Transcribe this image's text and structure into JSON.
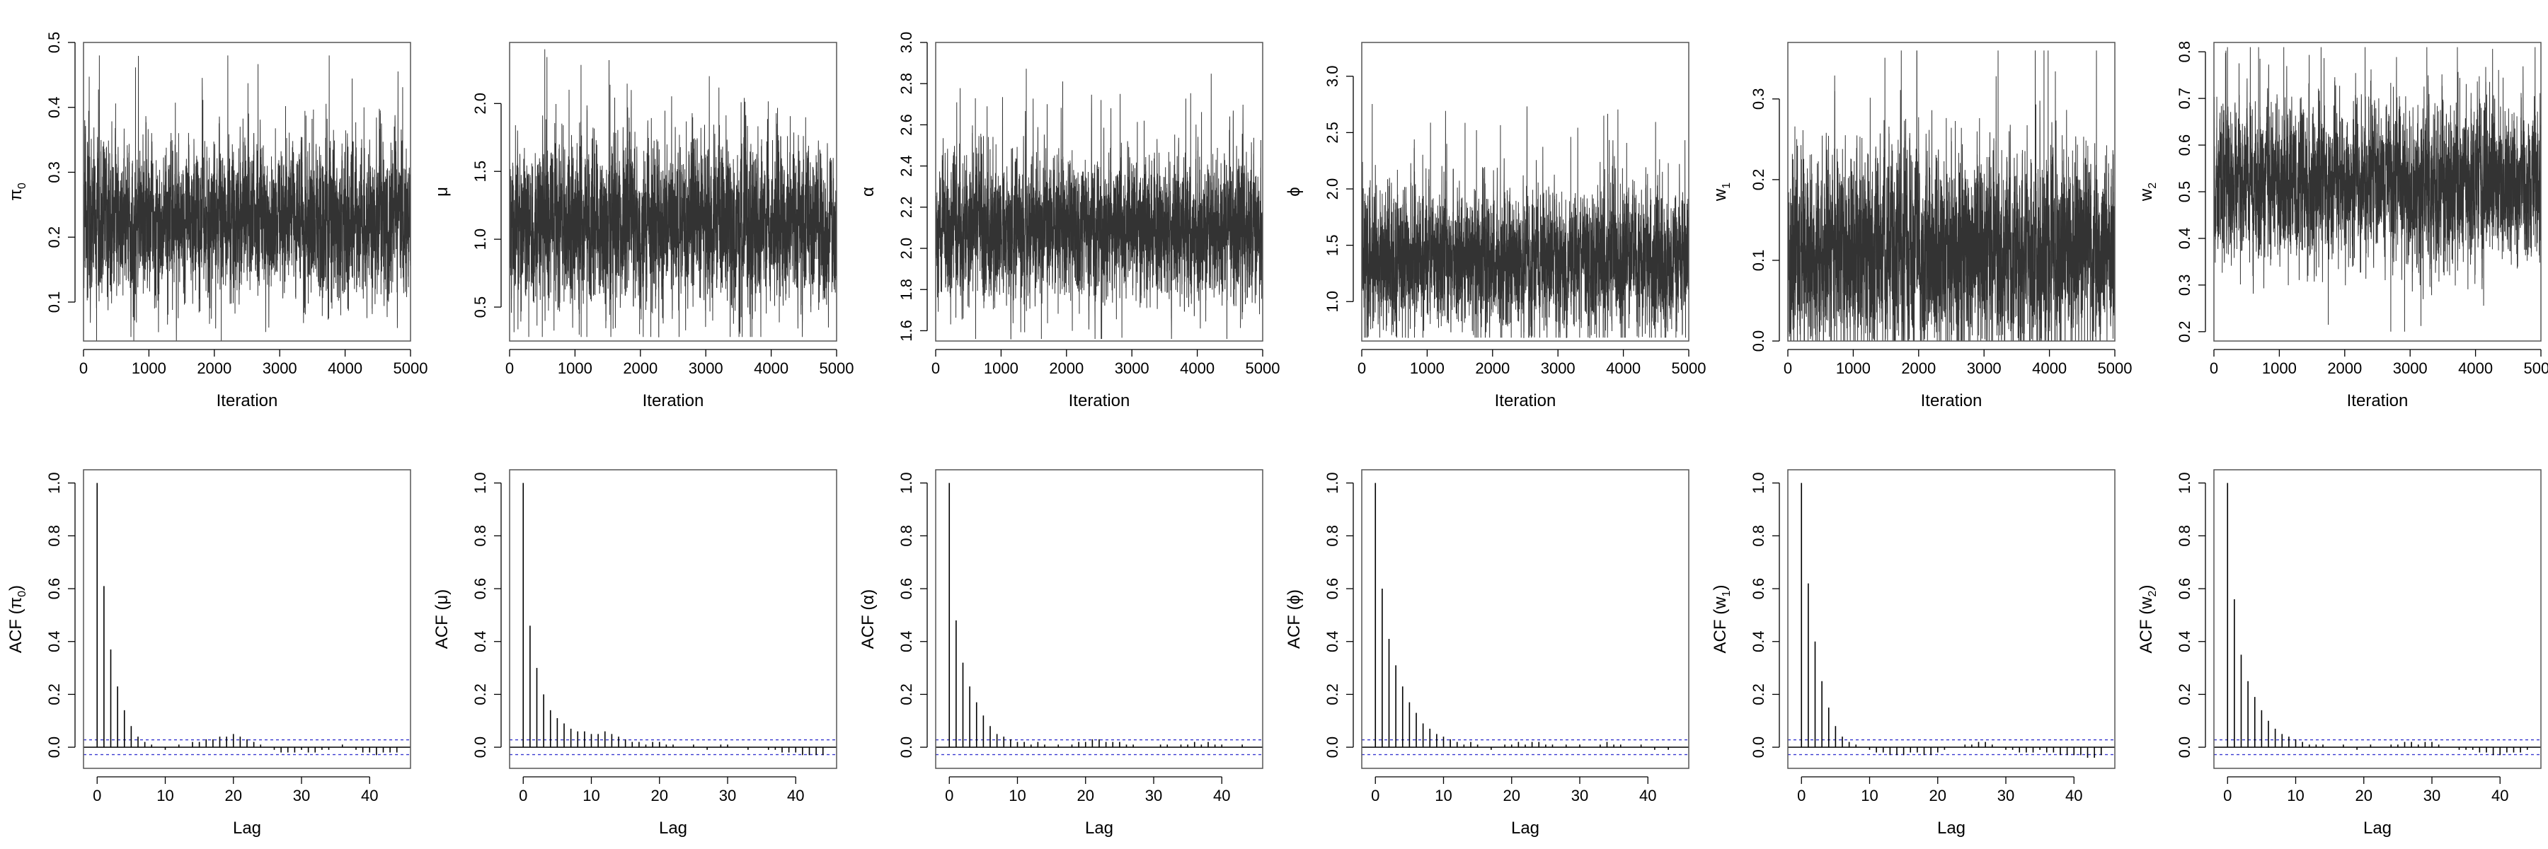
{
  "figure": {
    "x_label_trace": "Iteration",
    "x_label_acf": "Lag"
  },
  "chart_data": [
    {
      "type": "line",
      "ylabel": {
        "main": "π",
        "sub": "0"
      },
      "xlabel": "Iteration",
      "xlim": [
        0,
        5000
      ],
      "ylim": [
        0.04,
        0.5
      ],
      "xticks": [
        0,
        1000,
        2000,
        3000,
        4000,
        5000
      ],
      "xtick_labels": [
        "0",
        "1000",
        "2000",
        "3000",
        "4000",
        "5000"
      ],
      "yticks": [
        0.1,
        0.2,
        0.3,
        0.4,
        0.5
      ],
      "ytick_labels": [
        "0.1",
        "0.2",
        "0.3",
        "0.4",
        "0.5"
      ],
      "series": [
        {
          "n": 5000,
          "mean": 0.23,
          "sd": 0.055,
          "min": 0.04,
          "max": 0.48
        }
      ]
    },
    {
      "type": "line",
      "ylabel": {
        "main": "μ",
        "sub": ""
      },
      "xlabel": "Iteration",
      "xlim": [
        0,
        5000
      ],
      "ylim": [
        0.25,
        2.45
      ],
      "xticks": [
        0,
        1000,
        2000,
        3000,
        4000,
        5000
      ],
      "xtick_labels": [
        "0",
        "1000",
        "2000",
        "3000",
        "4000",
        "5000"
      ],
      "yticks": [
        0.5,
        1.0,
        1.5,
        2.0
      ],
      "ytick_labels": [
        "0.5",
        "1.0",
        "1.5",
        "2.0"
      ],
      "series": [
        {
          "n": 5000,
          "mean": 1.1,
          "sd": 0.28,
          "min": 0.28,
          "max": 2.4
        }
      ]
    },
    {
      "type": "line",
      "ylabel": {
        "main": "α",
        "sub": ""
      },
      "xlabel": "Iteration",
      "xlim": [
        0,
        5000
      ],
      "ylim": [
        1.55,
        3.0
      ],
      "xticks": [
        0,
        1000,
        2000,
        3000,
        4000,
        5000
      ],
      "xtick_labels": [
        "0",
        "1000",
        "2000",
        "3000",
        "4000",
        "5000"
      ],
      "yticks": [
        1.6,
        1.8,
        2.0,
        2.2,
        2.4,
        2.6,
        2.8,
        3.0
      ],
      "ytick_labels": [
        "1.6",
        "1.8",
        "2.0",
        "2.2",
        "2.4",
        "2.6",
        "2.8",
        "3.0"
      ],
      "series": [
        {
          "n": 5000,
          "mean": 2.1,
          "sd": 0.17,
          "min": 1.56,
          "max": 2.98
        }
      ]
    },
    {
      "type": "line",
      "ylabel": {
        "main": "ϕ",
        "sub": ""
      },
      "xlabel": "Iteration",
      "xlim": [
        0,
        5000
      ],
      "ylim": [
        0.65,
        3.3
      ],
      "xticks": [
        0,
        1000,
        2000,
        3000,
        4000,
        5000
      ],
      "xtick_labels": [
        "0",
        "1000",
        "2000",
        "3000",
        "4000",
        "5000"
      ],
      "yticks": [
        1.0,
        1.5,
        2.0,
        2.5,
        3.0
      ],
      "ytick_labels": [
        "1.0",
        "1.5",
        "2.0",
        "2.5",
        "3.0"
      ],
      "series": [
        {
          "n": 5000,
          "mean": 1.38,
          "sd": 0.3,
          "min": 0.68,
          "max": 3.25
        }
      ]
    },
    {
      "type": "line",
      "ylabel": {
        "main": "w",
        "sub": "1"
      },
      "xlabel": "Iteration",
      "xlim": [
        0,
        5000
      ],
      "ylim": [
        0.0,
        0.37
      ],
      "xticks": [
        0,
        1000,
        2000,
        3000,
        4000,
        5000
      ],
      "xtick_labels": [
        "0",
        "1000",
        "2000",
        "3000",
        "4000",
        "5000"
      ],
      "yticks": [
        0.0,
        0.1,
        0.2,
        0.3
      ],
      "ytick_labels": [
        "0.0",
        "0.1",
        "0.2",
        "0.3"
      ],
      "series": [
        {
          "n": 5000,
          "mean": 0.11,
          "sd": 0.06,
          "min": 0.0,
          "max": 0.36
        }
      ]
    },
    {
      "type": "line",
      "ylabel": {
        "main": "w",
        "sub": "2"
      },
      "xlabel": "Iteration",
      "xlim": [
        0,
        5000
      ],
      "ylim": [
        0.18,
        0.82
      ],
      "xticks": [
        0,
        1000,
        2000,
        3000,
        4000,
        5000
      ],
      "xtick_labels": [
        "0",
        "1000",
        "2000",
        "3000",
        "4000",
        "5000"
      ],
      "yticks": [
        0.2,
        0.3,
        0.4,
        0.5,
        0.6,
        0.7,
        0.8
      ],
      "ytick_labels": [
        "0.2",
        "0.3",
        "0.4",
        "0.5",
        "0.6",
        "0.7",
        "0.8"
      ],
      "series": [
        {
          "n": 5000,
          "mean": 0.52,
          "sd": 0.08,
          "min": 0.2,
          "max": 0.81
        }
      ]
    },
    {
      "type": "bar",
      "ylabel": {
        "main": "ACF (π",
        "sub": "0",
        "tail": ")"
      },
      "xlabel": "Lag",
      "xlim": [
        -2,
        46
      ],
      "ylim": [
        -0.08,
        1.05
      ],
      "xticks": [
        0,
        10,
        20,
        30,
        40
      ],
      "xtick_labels": [
        "0",
        "10",
        "20",
        "30",
        "40"
      ],
      "yticks": [
        0.0,
        0.2,
        0.4,
        0.6,
        0.8,
        1.0
      ],
      "ytick_labels": [
        "0.0",
        "0.2",
        "0.4",
        "0.6",
        "0.8",
        "1.0"
      ],
      "ci": 0.028,
      "values": [
        1.0,
        0.61,
        0.37,
        0.23,
        0.14,
        0.08,
        0.04,
        0.02,
        0.01,
        0.0,
        -0.01,
        0.0,
        0.01,
        0.0,
        0.02,
        0.02,
        0.03,
        0.03,
        0.04,
        0.04,
        0.05,
        0.04,
        0.03,
        0.02,
        0.01,
        0.0,
        -0.01,
        -0.02,
        -0.02,
        -0.02,
        -0.01,
        -0.02,
        -0.02,
        -0.01,
        -0.01,
        0.0,
        0.01,
        0.0,
        -0.01,
        -0.02,
        -0.02,
        -0.03,
        -0.02,
        -0.02,
        -0.02
      ]
    },
    {
      "type": "bar",
      "ylabel": {
        "main": "ACF (μ)",
        "sub": "",
        "tail": ""
      },
      "xlabel": "Lag",
      "xlim": [
        -2,
        46
      ],
      "ylim": [
        -0.08,
        1.05
      ],
      "xticks": [
        0,
        10,
        20,
        30,
        40
      ],
      "xtick_labels": [
        "0",
        "10",
        "20",
        "30",
        "40"
      ],
      "yticks": [
        0.0,
        0.2,
        0.4,
        0.6,
        0.8,
        1.0
      ],
      "ytick_labels": [
        "0.0",
        "0.2",
        "0.4",
        "0.6",
        "0.8",
        "1.0"
      ],
      "ci": 0.028,
      "values": [
        1.0,
        0.46,
        0.3,
        0.2,
        0.14,
        0.11,
        0.09,
        0.07,
        0.06,
        0.06,
        0.05,
        0.05,
        0.06,
        0.05,
        0.04,
        0.03,
        0.02,
        0.02,
        0.01,
        0.02,
        0.02,
        0.01,
        0.01,
        0.0,
        0.0,
        0.01,
        0.0,
        -0.01,
        0.0,
        0.01,
        0.01,
        0.0,
        0.0,
        -0.01,
        0.0,
        0.0,
        -0.01,
        -0.01,
        -0.02,
        -0.02,
        -0.02,
        -0.03,
        -0.03,
        -0.03,
        -0.03
      ]
    },
    {
      "type": "bar",
      "ylabel": {
        "main": "ACF (α)",
        "sub": "",
        "tail": ""
      },
      "xlabel": "Lag",
      "xlim": [
        -2,
        46
      ],
      "ylim": [
        -0.08,
        1.05
      ],
      "xticks": [
        0,
        10,
        20,
        30,
        40
      ],
      "xtick_labels": [
        "0",
        "10",
        "20",
        "30",
        "40"
      ],
      "yticks": [
        0.0,
        0.2,
        0.4,
        0.6,
        0.8,
        1.0
      ],
      "ytick_labels": [
        "0.0",
        "0.2",
        "0.4",
        "0.6",
        "0.8",
        "1.0"
      ],
      "ci": 0.028,
      "values": [
        1.0,
        0.48,
        0.32,
        0.23,
        0.17,
        0.12,
        0.08,
        0.05,
        0.04,
        0.03,
        0.02,
        0.02,
        0.01,
        0.02,
        0.01,
        0.0,
        0.01,
        0.0,
        0.01,
        0.02,
        0.02,
        0.03,
        0.03,
        0.02,
        0.02,
        0.02,
        0.01,
        0.01,
        0.0,
        0.0,
        0.0,
        0.01,
        0.01,
        0.0,
        0.01,
        0.01,
        0.02,
        0.01,
        0.02,
        0.01,
        0.01,
        0.0,
        0.0,
        0.01,
        0.0
      ]
    },
    {
      "type": "bar",
      "ylabel": {
        "main": "ACF (ϕ)",
        "sub": "",
        "tail": ""
      },
      "xlabel": "Lag",
      "xlim": [
        -2,
        46
      ],
      "ylim": [
        -0.08,
        1.05
      ],
      "xticks": [
        0,
        10,
        20,
        30,
        40
      ],
      "xtick_labels": [
        "0",
        "10",
        "20",
        "30",
        "40"
      ],
      "yticks": [
        0.0,
        0.2,
        0.4,
        0.6,
        0.8,
        1.0
      ],
      "ytick_labels": [
        "0.0",
        "0.2",
        "0.4",
        "0.6",
        "0.8",
        "1.0"
      ],
      "ci": 0.028,
      "values": [
        1.0,
        0.6,
        0.41,
        0.31,
        0.23,
        0.17,
        0.13,
        0.09,
        0.07,
        0.05,
        0.04,
        0.03,
        0.02,
        0.01,
        0.02,
        0.01,
        0.0,
        -0.01,
        0.0,
        0.01,
        0.01,
        0.02,
        0.01,
        0.02,
        0.02,
        0.01,
        0.01,
        0.0,
        0.01,
        0.0,
        0.01,
        0.0,
        0.0,
        0.01,
        0.02,
        0.01,
        0.01,
        0.0,
        0.0,
        0.01,
        0.0,
        -0.01,
        0.0,
        -0.01,
        0.0
      ]
    },
    {
      "type": "bar",
      "ylabel": {
        "main": "ACF (w",
        "sub": "1",
        "tail": ")"
      },
      "xlabel": "Lag",
      "xlim": [
        -2,
        46
      ],
      "ylim": [
        -0.08,
        1.05
      ],
      "xticks": [
        0,
        10,
        20,
        30,
        40
      ],
      "xtick_labels": [
        "0",
        "10",
        "20",
        "30",
        "40"
      ],
      "yticks": [
        0.0,
        0.2,
        0.4,
        0.6,
        0.8,
        1.0
      ],
      "ytick_labels": [
        "0.0",
        "0.2",
        "0.4",
        "0.6",
        "0.8",
        "1.0"
      ],
      "ci": 0.028,
      "values": [
        1.0,
        0.62,
        0.4,
        0.25,
        0.15,
        0.08,
        0.04,
        0.02,
        0.01,
        0.0,
        -0.01,
        -0.02,
        -0.02,
        -0.03,
        -0.03,
        -0.03,
        -0.02,
        -0.02,
        -0.03,
        -0.03,
        -0.02,
        -0.01,
        0.0,
        0.0,
        0.01,
        0.01,
        0.02,
        0.02,
        0.01,
        0.0,
        -0.01,
        -0.01,
        -0.02,
        -0.02,
        -0.02,
        -0.01,
        -0.02,
        -0.02,
        -0.03,
        -0.03,
        -0.03,
        -0.03,
        -0.04,
        -0.04,
        -0.03
      ]
    },
    {
      "type": "bar",
      "ylabel": {
        "main": "ACF (w",
        "sub": "2",
        "tail": ")"
      },
      "xlabel": "Lag",
      "xlim": [
        -2,
        46
      ],
      "ylim": [
        -0.08,
        1.05
      ],
      "xticks": [
        0,
        10,
        20,
        30,
        40
      ],
      "xtick_labels": [
        "0",
        "10",
        "20",
        "30",
        "40"
      ],
      "yticks": [
        0.0,
        0.2,
        0.4,
        0.6,
        0.8,
        1.0
      ],
      "ytick_labels": [
        "0.0",
        "0.2",
        "0.4",
        "0.6",
        "0.8",
        "1.0"
      ],
      "ci": 0.028,
      "values": [
        1.0,
        0.56,
        0.35,
        0.25,
        0.19,
        0.14,
        0.1,
        0.07,
        0.05,
        0.04,
        0.03,
        0.02,
        0.01,
        0.01,
        0.01,
        0.0,
        0.0,
        0.01,
        0.0,
        -0.01,
        0.0,
        0.01,
        0.0,
        0.0,
        0.01,
        0.01,
        0.02,
        0.02,
        0.01,
        0.02,
        0.02,
        0.01,
        0.0,
        0.0,
        -0.01,
        -0.01,
        -0.01,
        -0.02,
        -0.02,
        -0.03,
        -0.03,
        -0.02,
        -0.02,
        -0.02,
        -0.01
      ]
    }
  ]
}
